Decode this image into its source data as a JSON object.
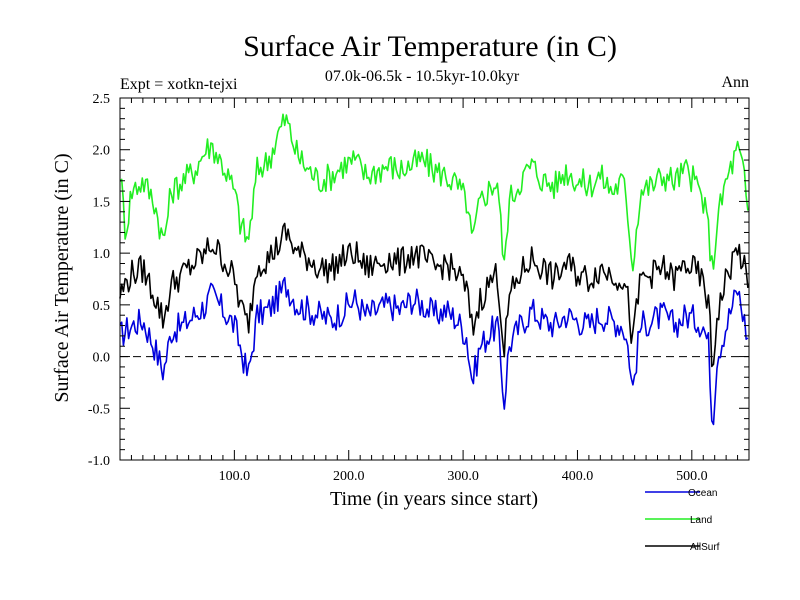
{
  "chart_data": {
    "type": "line",
    "title": "Surface Air Temperature (in C)",
    "subtitle": "07.0k-06.5k - 10.5kyr-10.0kyr",
    "expt_label": "Expt = xotkn-tejxi",
    "season_label": "Ann",
    "xlabel": "Time (in years since start)",
    "ylabel": "Surface Air Temperature (in C)",
    "xlim": [
      0,
      550
    ],
    "ylim": [
      -1.0,
      2.5
    ],
    "xticks": [
      100,
      200,
      300,
      400,
      500
    ],
    "xtick_labels": [
      "100.0",
      "200.0",
      "300.0",
      "400.0",
      "500.0"
    ],
    "yticks": [
      -1.0,
      -0.5,
      0.0,
      0.5,
      1.0,
      1.5,
      2.0,
      2.5
    ],
    "ytick_labels": [
      "-1.0",
      "-0.5",
      "0.0",
      "0.5",
      "1.0",
      "1.5",
      "2.0",
      "2.5"
    ],
    "reference_line": 0.0,
    "series": [
      {
        "name": "Ocean",
        "color": "#0000dd",
        "x": [
          0,
          10,
          20,
          30,
          38,
          45,
          55,
          65,
          75,
          80,
          90,
          100,
          105,
          112,
          120,
          130,
          140,
          145,
          155,
          165,
          175,
          185,
          195,
          205,
          215,
          225,
          235,
          245,
          255,
          265,
          275,
          285,
          295,
          303,
          308,
          315,
          325,
          330,
          336,
          340,
          350,
          360,
          370,
          380,
          390,
          400,
          410,
          420,
          430,
          440,
          445,
          448,
          455,
          465,
          475,
          485,
          495,
          505,
          510,
          515,
          518,
          522,
          530,
          540,
          545,
          550
        ],
        "values": [
          0.2,
          0.3,
          0.35,
          0.1,
          -0.15,
          0.25,
          0.3,
          0.4,
          0.5,
          0.6,
          0.45,
          0.3,
          0.1,
          -0.2,
          0.4,
          0.45,
          0.6,
          0.7,
          0.5,
          0.45,
          0.4,
          0.35,
          0.45,
          0.55,
          0.4,
          0.45,
          0.5,
          0.45,
          0.55,
          0.5,
          0.4,
          0.45,
          0.35,
          0.2,
          -0.25,
          0.1,
          0.25,
          0.3,
          -0.45,
          0.1,
          0.3,
          0.45,
          0.35,
          0.3,
          0.4,
          0.35,
          0.3,
          0.4,
          0.35,
          0.3,
          0.05,
          -0.35,
          0.3,
          0.35,
          0.4,
          0.3,
          0.4,
          0.35,
          0.3,
          0.1,
          -0.7,
          0.0,
          0.3,
          0.65,
          0.4,
          0.1
        ]
      },
      {
        "name": "Land",
        "color": "#22ee22",
        "x": [
          0,
          5,
          10,
          20,
          30,
          38,
          45,
          55,
          65,
          75,
          80,
          90,
          100,
          105,
          112,
          120,
          130,
          140,
          145,
          155,
          165,
          175,
          185,
          195,
          205,
          215,
          225,
          235,
          245,
          255,
          265,
          275,
          285,
          295,
          303,
          308,
          315,
          325,
          330,
          336,
          340,
          350,
          360,
          370,
          380,
          390,
          400,
          410,
          420,
          430,
          440,
          445,
          448,
          455,
          465,
          475,
          485,
          495,
          505,
          510,
          515,
          518,
          522,
          530,
          540,
          545,
          550
        ],
        "values": [
          1.8,
          1.2,
          1.6,
          1.7,
          1.5,
          1.1,
          1.6,
          1.7,
          1.8,
          2.0,
          2.05,
          1.85,
          1.6,
          1.3,
          1.1,
          1.8,
          1.9,
          2.2,
          2.3,
          1.95,
          1.8,
          1.7,
          1.75,
          1.85,
          1.9,
          1.75,
          1.8,
          1.85,
          1.8,
          1.85,
          1.9,
          1.8,
          1.75,
          1.65,
          1.5,
          1.1,
          1.5,
          1.65,
          1.7,
          0.85,
          1.5,
          1.7,
          1.85,
          1.7,
          1.65,
          1.8,
          1.7,
          1.65,
          1.75,
          1.6,
          1.7,
          1.3,
          0.85,
          1.6,
          1.65,
          1.75,
          1.7,
          1.8,
          1.65,
          1.5,
          1.2,
          0.8,
          1.3,
          1.7,
          2.0,
          1.8,
          1.3
        ]
      },
      {
        "name": "AllSurf",
        "color": "#000000",
        "x": [
          0,
          10,
          20,
          30,
          38,
          45,
          55,
          65,
          75,
          80,
          90,
          100,
          105,
          112,
          120,
          130,
          140,
          145,
          155,
          165,
          175,
          185,
          195,
          205,
          215,
          225,
          235,
          245,
          255,
          265,
          275,
          285,
          295,
          303,
          308,
          315,
          325,
          330,
          336,
          340,
          350,
          360,
          370,
          380,
          390,
          400,
          410,
          420,
          430,
          440,
          445,
          448,
          455,
          465,
          475,
          485,
          495,
          505,
          510,
          515,
          518,
          522,
          530,
          540,
          545,
          550
        ],
        "values": [
          0.6,
          0.8,
          0.85,
          0.6,
          0.35,
          0.7,
          0.8,
          0.9,
          1.0,
          1.1,
          0.95,
          0.75,
          0.5,
          0.3,
          0.9,
          0.95,
          1.1,
          1.2,
          1.0,
          0.95,
          0.85,
          0.85,
          0.95,
          1.0,
          0.85,
          0.9,
          0.95,
          0.9,
          1.0,
          0.95,
          0.85,
          0.9,
          0.8,
          0.65,
          0.25,
          0.55,
          0.75,
          0.8,
          0.05,
          0.55,
          0.8,
          0.95,
          0.85,
          0.75,
          0.9,
          0.8,
          0.75,
          0.85,
          0.8,
          0.75,
          0.5,
          0.1,
          0.75,
          0.8,
          0.85,
          0.75,
          0.9,
          0.8,
          0.7,
          0.5,
          -0.2,
          0.4,
          0.75,
          1.05,
          0.9,
          0.6
        ]
      }
    ]
  }
}
